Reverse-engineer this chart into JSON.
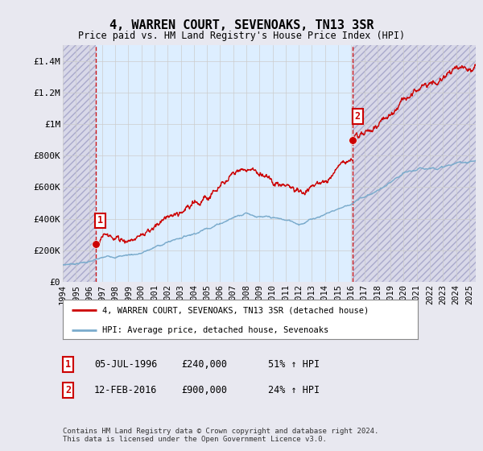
{
  "title": "4, WARREN COURT, SEVENOAKS, TN13 3SR",
  "subtitle": "Price paid vs. HM Land Registry's House Price Index (HPI)",
  "ylim": [
    0,
    1500000
  ],
  "yticks": [
    0,
    200000,
    400000,
    600000,
    800000,
    1000000,
    1200000,
    1400000
  ],
  "ytick_labels": [
    "£0",
    "£200K",
    "£400K",
    "£600K",
    "£800K",
    "£1M",
    "£1.2M",
    "£1.4M"
  ],
  "sale1_date_num": 1996.51,
  "sale1_price": 240000,
  "sale1_label": "1",
  "sale2_date_num": 2016.12,
  "sale2_price": 900000,
  "sale2_label": "2",
  "legend_line1": "4, WARREN COURT, SEVENOAKS, TN13 3SR (detached house)",
  "legend_line2": "HPI: Average price, detached house, Sevenoaks",
  "footer": "Contains HM Land Registry data © Crown copyright and database right 2024.\nThis data is licensed under the Open Government Licence v3.0.",
  "line_color_red": "#cc0000",
  "line_color_blue": "#7aabcc",
  "bg_color": "#e8e8f0",
  "plot_bg_color": "#ffffff",
  "mid_bg_color": "#ddeeff",
  "hatch_bg_color": "#d8d8e8",
  "grid_color": "#cccccc",
  "vline_color": "#cc0000",
  "xmin": 1994,
  "xmax": 2025.5,
  "xtick_years": [
    1994,
    1995,
    1996,
    1997,
    1998,
    1999,
    2000,
    2001,
    2002,
    2003,
    2004,
    2005,
    2006,
    2007,
    2008,
    2009,
    2010,
    2011,
    2012,
    2013,
    2014,
    2015,
    2016,
    2017,
    2018,
    2019,
    2020,
    2021,
    2022,
    2023,
    2024,
    2025
  ]
}
